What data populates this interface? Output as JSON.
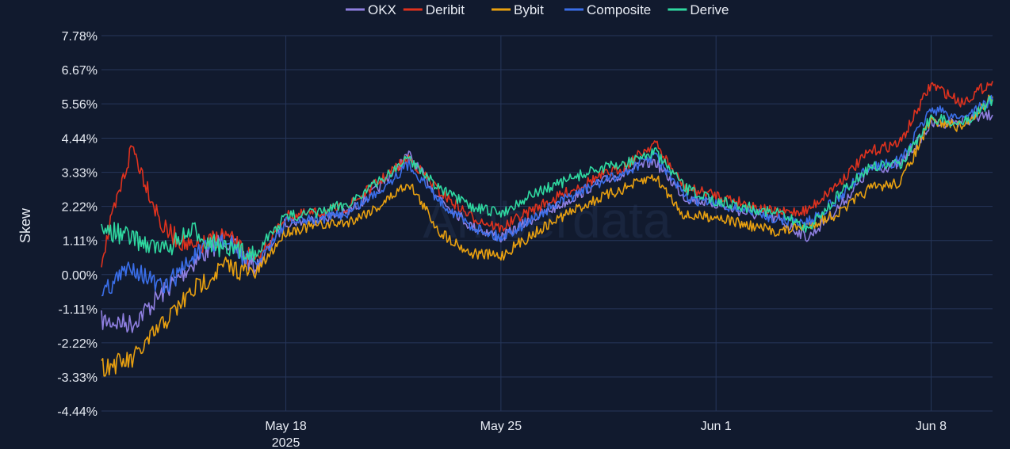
{
  "chart_data": {
    "type": "line",
    "title": "",
    "xlabel": "",
    "ylabel": "Skew",
    "x_range": [
      "2025-05-12",
      "2025-06-10"
    ],
    "ylim": [
      -4.44,
      7.78
    ],
    "y_ticks": [
      "7.78%",
      "6.67%",
      "5.56%",
      "4.44%",
      "3.33%",
      "2.22%",
      "1.11%",
      "0.00%",
      "-1.11%",
      "-2.22%",
      "-3.33%",
      "-4.44%"
    ],
    "y_tick_values": [
      7.78,
      6.67,
      5.56,
      4.44,
      3.33,
      2.22,
      1.11,
      0.0,
      -1.11,
      -2.22,
      -3.33,
      -4.44
    ],
    "x_ticks": [
      {
        "date": "2025-05-18",
        "label": "May 18",
        "sublabel": "2025"
      },
      {
        "date": "2025-05-25",
        "label": "May 25",
        "sublabel": ""
      },
      {
        "date": "2025-06-01",
        "label": "Jun 1",
        "sublabel": ""
      },
      {
        "date": "2025-06-08",
        "label": "Jun 8",
        "sublabel": ""
      }
    ],
    "grid": true,
    "legend_position": "top-center",
    "watermark": "Amberdata",
    "series": [
      {
        "name": "OKX",
        "color": "#8f7fe0",
        "points": [
          [
            "2025-05-12",
            -1.5
          ],
          [
            "2025-05-13",
            -1.6
          ],
          [
            "2025-05-14",
            -0.6
          ],
          [
            "2025-05-15",
            0.4
          ],
          [
            "2025-05-16",
            1.2
          ],
          [
            "2025-05-17",
            0.2
          ],
          [
            "2025-05-18",
            1.7
          ],
          [
            "2025-05-19",
            1.8
          ],
          [
            "2025-05-20",
            2.0
          ],
          [
            "2025-05-21",
            2.8
          ],
          [
            "2025-05-22",
            3.9
          ],
          [
            "2025-05-23",
            2.5
          ],
          [
            "2025-05-24",
            1.6
          ],
          [
            "2025-05-25",
            1.2
          ],
          [
            "2025-05-26",
            1.8
          ],
          [
            "2025-05-27",
            2.3
          ],
          [
            "2025-05-28",
            2.9
          ],
          [
            "2025-05-29",
            3.3
          ],
          [
            "2025-05-30",
            3.7
          ],
          [
            "2025-05-31",
            2.5
          ],
          [
            "2025-06-01",
            2.3
          ],
          [
            "2025-06-02",
            2.0
          ],
          [
            "2025-06-03",
            1.8
          ],
          [
            "2025-06-04",
            1.2
          ],
          [
            "2025-06-05",
            2.2
          ],
          [
            "2025-06-06",
            3.4
          ],
          [
            "2025-06-07",
            3.6
          ],
          [
            "2025-06-08",
            4.9
          ],
          [
            "2025-06-09",
            5.0
          ],
          [
            "2025-06-10",
            5.2
          ]
        ]
      },
      {
        "name": "Deribit",
        "color": "#e0321e",
        "points": [
          [
            "2025-05-12",
            0.5
          ],
          [
            "2025-05-13",
            4.2
          ],
          [
            "2025-05-14",
            1.5
          ],
          [
            "2025-05-15",
            0.8
          ],
          [
            "2025-05-16",
            1.3
          ],
          [
            "2025-05-17",
            0.4
          ],
          [
            "2025-05-18",
            1.9
          ],
          [
            "2025-05-19",
            2.0
          ],
          [
            "2025-05-20",
            2.2
          ],
          [
            "2025-05-21",
            3.0
          ],
          [
            "2025-05-22",
            3.8
          ],
          [
            "2025-05-23",
            2.7
          ],
          [
            "2025-05-24",
            1.9
          ],
          [
            "2025-05-25",
            1.5
          ],
          [
            "2025-05-26",
            2.1
          ],
          [
            "2025-05-27",
            2.6
          ],
          [
            "2025-05-28",
            3.1
          ],
          [
            "2025-05-29",
            3.5
          ],
          [
            "2025-05-30",
            4.3
          ],
          [
            "2025-05-31",
            2.8
          ],
          [
            "2025-06-01",
            2.6
          ],
          [
            "2025-06-02",
            2.3
          ],
          [
            "2025-06-03",
            2.0
          ],
          [
            "2025-06-04",
            2.1
          ],
          [
            "2025-06-05",
            3.0
          ],
          [
            "2025-06-06",
            4.0
          ],
          [
            "2025-06-07",
            4.3
          ],
          [
            "2025-06-08",
            6.2
          ],
          [
            "2025-06-09",
            5.6
          ],
          [
            "2025-06-10",
            6.3
          ]
        ]
      },
      {
        "name": "Bybit",
        "color": "#e8a010",
        "points": [
          [
            "2025-05-12",
            -3.0
          ],
          [
            "2025-05-13",
            -2.8
          ],
          [
            "2025-05-14",
            -1.6
          ],
          [
            "2025-05-15",
            -0.5
          ],
          [
            "2025-05-16",
            0.3
          ],
          [
            "2025-05-17",
            0.0
          ],
          [
            "2025-05-18",
            1.4
          ],
          [
            "2025-05-19",
            1.6
          ],
          [
            "2025-05-20",
            1.7
          ],
          [
            "2025-05-21",
            2.2
          ],
          [
            "2025-05-22",
            3.0
          ],
          [
            "2025-05-23",
            1.4
          ],
          [
            "2025-05-24",
            0.7
          ],
          [
            "2025-05-25",
            0.6
          ],
          [
            "2025-05-26",
            1.3
          ],
          [
            "2025-05-27",
            1.9
          ],
          [
            "2025-05-28",
            2.4
          ],
          [
            "2025-05-29",
            2.8
          ],
          [
            "2025-05-30",
            3.2
          ],
          [
            "2025-05-31",
            1.9
          ],
          [
            "2025-06-01",
            1.9
          ],
          [
            "2025-06-02",
            1.6
          ],
          [
            "2025-06-03",
            1.4
          ],
          [
            "2025-06-04",
            1.6
          ],
          [
            "2025-06-05",
            2.0
          ],
          [
            "2025-06-06",
            2.8
          ],
          [
            "2025-06-07",
            3.0
          ],
          [
            "2025-06-08",
            5.0
          ],
          [
            "2025-06-09",
            4.8
          ],
          [
            "2025-06-10",
            5.8
          ]
        ]
      },
      {
        "name": "Composite",
        "color": "#3a6ee8",
        "points": [
          [
            "2025-05-12",
            -0.6
          ],
          [
            "2025-05-13",
            0.3
          ],
          [
            "2025-05-14",
            -0.5
          ],
          [
            "2025-05-15",
            0.6
          ],
          [
            "2025-05-16",
            1.1
          ],
          [
            "2025-05-17",
            0.3
          ],
          [
            "2025-05-18",
            1.7
          ],
          [
            "2025-05-19",
            1.8
          ],
          [
            "2025-05-20",
            2.0
          ],
          [
            "2025-05-21",
            2.7
          ],
          [
            "2025-05-22",
            3.6
          ],
          [
            "2025-05-23",
            2.4
          ],
          [
            "2025-05-24",
            1.6
          ],
          [
            "2025-05-25",
            1.2
          ],
          [
            "2025-05-26",
            1.8
          ],
          [
            "2025-05-27",
            2.4
          ],
          [
            "2025-05-28",
            2.9
          ],
          [
            "2025-05-29",
            3.3
          ],
          [
            "2025-05-30",
            3.9
          ],
          [
            "2025-05-31",
            2.5
          ],
          [
            "2025-06-01",
            2.3
          ],
          [
            "2025-06-02",
            2.1
          ],
          [
            "2025-06-03",
            1.8
          ],
          [
            "2025-06-04",
            1.7
          ],
          [
            "2025-06-05",
            2.5
          ],
          [
            "2025-06-06",
            3.5
          ],
          [
            "2025-06-07",
            3.7
          ],
          [
            "2025-06-08",
            5.4
          ],
          [
            "2025-06-09",
            5.1
          ],
          [
            "2025-06-10",
            5.7
          ]
        ]
      },
      {
        "name": "Derive",
        "color": "#2fd8a0",
        "points": [
          [
            "2025-05-12",
            1.5
          ],
          [
            "2025-05-13",
            1.2
          ],
          [
            "2025-05-14",
            0.8
          ],
          [
            "2025-05-15",
            1.4
          ],
          [
            "2025-05-16",
            0.8
          ],
          [
            "2025-05-17",
            0.7
          ],
          [
            "2025-05-18",
            1.9
          ],
          [
            "2025-05-19",
            2.0
          ],
          [
            "2025-05-20",
            2.3
          ],
          [
            "2025-05-21",
            3.0
          ],
          [
            "2025-05-22",
            3.8
          ],
          [
            "2025-05-23",
            2.8
          ],
          [
            "2025-05-24",
            2.2
          ],
          [
            "2025-05-25",
            2.0
          ],
          [
            "2025-05-26",
            2.6
          ],
          [
            "2025-05-27",
            3.0
          ],
          [
            "2025-05-28",
            3.4
          ],
          [
            "2025-05-29",
            3.6
          ],
          [
            "2025-05-30",
            4.0
          ],
          [
            "2025-05-31",
            2.8
          ],
          [
            "2025-06-01",
            2.4
          ],
          [
            "2025-06-02",
            2.2
          ],
          [
            "2025-06-03",
            2.0
          ],
          [
            "2025-06-04",
            1.5
          ],
          [
            "2025-06-05",
            2.6
          ],
          [
            "2025-06-06",
            3.5
          ],
          [
            "2025-06-07",
            3.6
          ],
          [
            "2025-06-08",
            5.1
          ],
          [
            "2025-06-09",
            4.9
          ],
          [
            "2025-06-10",
            5.7
          ]
        ]
      }
    ]
  }
}
